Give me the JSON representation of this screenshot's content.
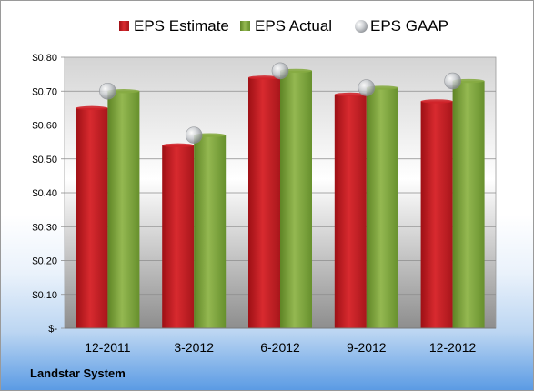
{
  "company": "Landstar System",
  "chart_data": {
    "type": "bar",
    "categories": [
      "12-2011",
      "3-2012",
      "6-2012",
      "9-2012",
      "12-2012"
    ],
    "series": [
      {
        "name": "EPS Estimate",
        "kind": "bar",
        "color": "#d0242a",
        "values": [
          0.65,
          0.54,
          0.74,
          0.69,
          0.67
        ]
      },
      {
        "name": "EPS Actual",
        "kind": "bar",
        "color": "#86ab43",
        "values": [
          0.7,
          0.57,
          0.76,
          0.71,
          0.73
        ]
      },
      {
        "name": "EPS GAAP",
        "kind": "marker",
        "color": "#b8bcc2",
        "values": [
          0.7,
          0.57,
          0.76,
          0.71,
          0.73
        ]
      }
    ],
    "y_ticks": [
      {
        "value": 0,
        "label": "$-"
      },
      {
        "value": 0.1,
        "label": "$0.10"
      },
      {
        "value": 0.2,
        "label": "$0.20"
      },
      {
        "value": 0.3,
        "label": "$0.30"
      },
      {
        "value": 0.4,
        "label": "$0.40"
      },
      {
        "value": 0.5,
        "label": "$0.50"
      },
      {
        "value": 0.6,
        "label": "$0.60"
      },
      {
        "value": 0.7,
        "label": "$0.70"
      },
      {
        "value": 0.8,
        "label": "$0.80"
      }
    ],
    "ylim": [
      0,
      0.8
    ],
    "grid": true,
    "legend_position": "top"
  }
}
